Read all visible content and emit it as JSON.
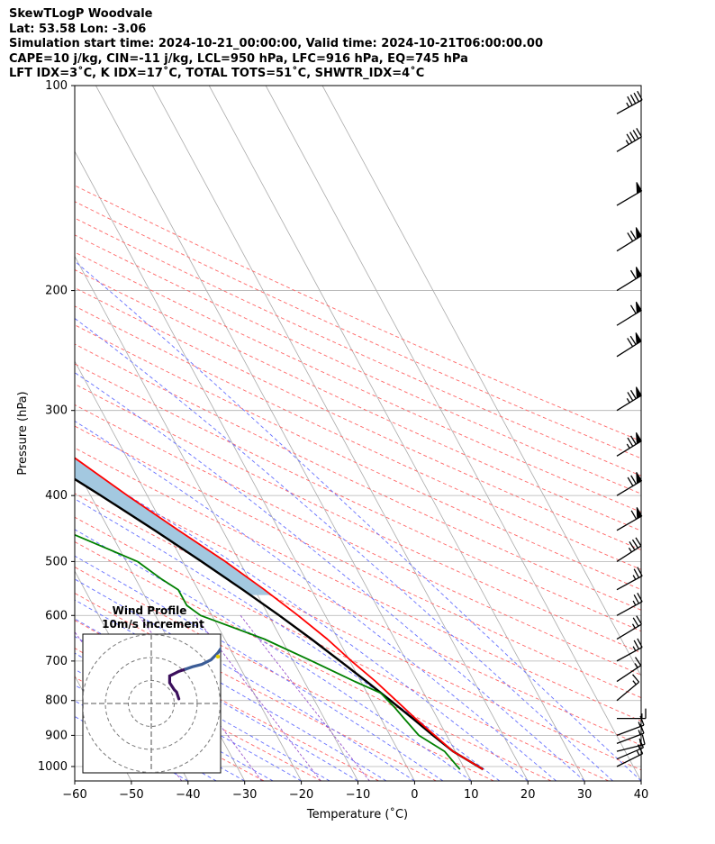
{
  "header": {
    "line1": "SkewTLogP Woodvale",
    "line2": "Lat: 53.58   Lon: -3.06",
    "line3": "Simulation start time: 2024-10-21_00:00:00, Valid time: 2024-10-21T06:00:00.00",
    "line4": "CAPE=10 j/kg, CIN=-11 j/kg, LCL=950 hPa, LFC=916 hPa, EQ=745 hPa",
    "line5": "LFT IDX=3˚C, K IDX=17˚C, TOTAL TOTS=51˚C, SHWTR_IDX=4˚C"
  },
  "chart_data": [
    {
      "type": "line",
      "title": "",
      "xlabel": "Temperature (˚C)",
      "ylabel": "Pressure (hPa)",
      "xlim": [
        -60,
        40
      ],
      "ylim": [
        1050,
        100
      ],
      "yscale": "log",
      "x_ticks": [
        -60,
        -50,
        -40,
        -30,
        -20,
        -10,
        0,
        10,
        20,
        30,
        40
      ],
      "x_tick_labels": [
        "−60",
        "−50",
        "−40",
        "−30",
        "−20",
        "−10",
        "0",
        "10",
        "20",
        "30",
        "40"
      ],
      "y_ticks": [
        1000,
        900,
        800,
        700,
        600,
        500,
        400,
        300,
        200,
        100
      ],
      "y_tick_labels": [
        "1000",
        "900",
        "800",
        "700",
        "600",
        "500",
        "400",
        "300",
        "200",
        "100"
      ],
      "grid": true,
      "series": [
        {
          "role": "temperature",
          "color": "#ff0000",
          "points": [
            [
              1010,
              13.2
            ],
            [
              950,
              9.6
            ],
            [
              900,
              7.9
            ],
            [
              850,
              6.1
            ],
            [
              800,
              4.4
            ],
            [
              750,
              2.6
            ],
            [
              700,
              0.3
            ],
            [
              650,
              -1.9
            ],
            [
              600,
              -4.8
            ],
            [
              550,
              -8.3
            ],
            [
              500,
              -12.5
            ],
            [
              450,
              -17.8
            ],
            [
              400,
              -23.5
            ],
            [
              350,
              -29.5
            ],
            [
              300,
              -38
            ],
            [
              270,
              -43.5
            ],
            [
              250,
              -48.7
            ],
            [
              230,
              -53.8
            ],
            [
              220,
              -55.2
            ],
            [
              200,
              -56.5
            ],
            [
              180,
              -58.2
            ],
            [
              160,
              -62.6
            ],
            [
              150,
              -64.8
            ],
            [
              140,
              -66
            ],
            [
              130,
              -67.5
            ],
            [
              120,
              -68.8
            ],
            [
              110,
              -71.2
            ],
            [
              100,
              -74.2
            ]
          ]
        },
        {
          "role": "dewpoint",
          "color": "#008000",
          "points": [
            [
              1010,
              9.1
            ],
            [
              950,
              8.1
            ],
            [
              900,
              5.1
            ],
            [
              850,
              4.1
            ],
            [
              820,
              3.5
            ],
            [
              780,
              2.4
            ],
            [
              750,
              -1.1
            ],
            [
              700,
              -6.7
            ],
            [
              650,
              -13
            ],
            [
              600,
              -22
            ],
            [
              580,
              -23.5
            ],
            [
              550,
              -23.5
            ],
            [
              530,
              -25.5
            ],
            [
              500,
              -28
            ],
            [
              450,
              -38
            ],
            [
              410,
              -50
            ],
            [
              380,
              -51
            ],
            [
              360,
              -45
            ],
            [
              330,
              -33
            ],
            [
              310,
              -32.5
            ],
            [
              280,
              -37.5
            ],
            [
              260,
              -43.2
            ],
            [
              240,
              -48.7
            ],
            [
              230,
              -50.3
            ],
            [
              210,
              -57.5
            ],
            [
              200,
              -61.8
            ],
            [
              185,
              -67
            ],
            [
              165,
              -73.5
            ],
            [
              150,
              -76
            ],
            [
              130,
              -76
            ],
            [
              110,
              -76
            ],
            [
              100,
              -76.5
            ]
          ]
        },
        {
          "role": "parcel",
          "color": "#000000",
          "points": [
            [
              1010,
              13.2
            ],
            [
              950,
              9.6
            ],
            [
              900,
              7.6
            ],
            [
              850,
              5.6
            ],
            [
              800,
              3.4
            ],
            [
              750,
              1.0
            ],
            [
              700,
              -1.7
            ],
            [
              650,
              -4.7
            ],
            [
              600,
              -8.1
            ],
            [
              550,
              -12.1
            ],
            [
              500,
              -16.7
            ],
            [
              450,
              -22.0
            ],
            [
              400,
              -28.2
            ],
            [
              350,
              -35.5
            ],
            [
              300,
              -44.2
            ],
            [
              250,
              -54.3
            ],
            [
              200,
              -66
            ],
            [
              150,
              -80
            ],
            [
              100,
              -98
            ]
          ]
        }
      ],
      "shaded_region": {
        "between": [
          "temperature",
          "parcel"
        ],
        "color": "#a3c8e0"
      },
      "background_lines": {
        "isotherms_color": "#aaaaaa",
        "dry_adiabats_color": "#ff6666",
        "moist_adiabats_color": "#6670ff",
        "mixing_ratio_color": "#9955cc"
      },
      "wind_barbs": [
        {
          "p": 1000,
          "u": -6,
          "v": 3
        },
        {
          "p": 975,
          "u": -7,
          "v": 3
        },
        {
          "p": 950,
          "u": -8,
          "v": 2
        },
        {
          "p": 925,
          "u": -8,
          "v": 3
        },
        {
          "p": 900,
          "u": -8,
          "v": 3
        },
        {
          "p": 850,
          "u": -7,
          "v": 0
        },
        {
          "p": 800,
          "u": -6,
          "v": 5
        },
        {
          "p": 750,
          "u": -6,
          "v": 4
        },
        {
          "p": 700,
          "u": -11,
          "v": 6
        },
        {
          "p": 650,
          "u": -10,
          "v": 6
        },
        {
          "p": 600,
          "u": -11,
          "v": 6
        },
        {
          "p": 550,
          "u": -11,
          "v": 6
        },
        {
          "p": 500,
          "u": -14,
          "v": 9
        },
        {
          "p": 450,
          "u": -26,
          "v": 15
        },
        {
          "p": 400,
          "u": -30,
          "v": 18
        },
        {
          "p": 350,
          "u": -31,
          "v": 19
        },
        {
          "p": 300,
          "u": -31,
          "v": 19
        },
        {
          "p": 250,
          "u": -30,
          "v": 19
        },
        {
          "p": 225,
          "u": -26,
          "v": 16
        },
        {
          "p": 200,
          "u": -26,
          "v": 16
        },
        {
          "p": 175,
          "u": -29,
          "v": 18
        },
        {
          "p": 150,
          "u": -22,
          "v": 13
        },
        {
          "p": 125,
          "u": -20,
          "v": 12
        },
        {
          "p": 110,
          "u": -20,
          "v": 11
        }
      ]
    },
    {
      "type": "scatter",
      "title": "Wind Profile",
      "subtitle": "10m/s increment",
      "rings_ms": [
        10,
        20,
        30
      ],
      "xlim": [
        -30,
        30
      ],
      "ylim": [
        -30,
        30
      ],
      "grid": false,
      "hodograph": [
        [
          12,
          2
        ],
        [
          11,
          5
        ],
        [
          10,
          6
        ],
        [
          8,
          9
        ],
        [
          8,
          12
        ],
        [
          10,
          13
        ],
        [
          12,
          14
        ],
        [
          15,
          15
        ],
        [
          18,
          16
        ],
        [
          22,
          17
        ],
        [
          26,
          19
        ],
        [
          29,
          22
        ],
        [
          31,
          25
        ]
      ],
      "marker": {
        "u": 29,
        "v": 31,
        "color": "#e8d000"
      },
      "line_colors": [
        "#3b0f5c",
        "#3b5c96"
      ]
    }
  ]
}
